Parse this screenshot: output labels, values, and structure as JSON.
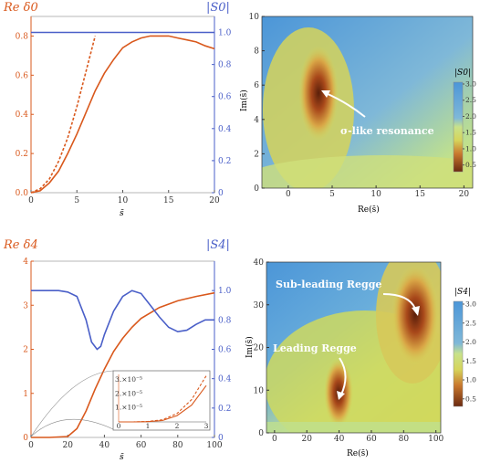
{
  "chart_data": [
    {
      "type": "line",
      "panel": "top-left",
      "left_axis_title": "Re δ0",
      "right_axis_title": "|S0|",
      "xlabel": "s̄",
      "xlim": [
        0,
        20
      ],
      "ylim": [
        0,
        0.9
      ],
      "y2lim": [
        0,
        1.1
      ],
      "x_ticks": [
        "0",
        "5",
        "10",
        "15",
        "20"
      ],
      "y_ticks": [
        "0.0",
        "0.2",
        "0.4",
        "0.6",
        "0.8"
      ],
      "y2_ticks": [
        "0",
        "0.2",
        "0.4",
        "0.6",
        "0.8",
        "1.0"
      ],
      "series": [
        {
          "role": "Re δ0",
          "color": "#d9581c",
          "axis": "left",
          "x": [
            0,
            1,
            2,
            3,
            4,
            5,
            6,
            7,
            8,
            9,
            10,
            11,
            12,
            13,
            14,
            15,
            16,
            17,
            18,
            19,
            20
          ],
          "y": [
            0,
            0.01,
            0.05,
            0.11,
            0.2,
            0.3,
            0.41,
            0.52,
            0.61,
            0.68,
            0.74,
            0.77,
            0.79,
            0.8,
            0.8,
            0.8,
            0.79,
            0.78,
            0.77,
            0.75,
            0.735
          ]
        },
        {
          "role": "approximation",
          "color": "#d9581c",
          "dashed": true,
          "axis": "left",
          "x": [
            0,
            1,
            2,
            3,
            4,
            5,
            6,
            7
          ],
          "y": [
            0,
            0.02,
            0.07,
            0.16,
            0.28,
            0.44,
            0.62,
            0.8
          ]
        },
        {
          "role": "|S0|",
          "color": "#4a5fc8",
          "axis": "right",
          "x": [
            0,
            20
          ],
          "y": [
            1.0,
            1.0
          ]
        }
      ]
    },
    {
      "type": "heatmap",
      "panel": "top-right",
      "xlabel": "Re(s̄)",
      "ylabel": "Im(s̄)",
      "xlim": [
        -3,
        21
      ],
      "ylim": [
        0,
        10
      ],
      "x_ticks": [
        "0",
        "5",
        "10",
        "15",
        "20"
      ],
      "y_ticks": [
        "0",
        "2",
        "4",
        "6",
        "8",
        "10"
      ],
      "colorbar_title": "|S0|",
      "colorbar_ticks": [
        "3.0",
        "2.5",
        "2.0",
        "1.5",
        "1.0",
        "0.5"
      ],
      "annotation": "σ-like resonance",
      "minimum_point": {
        "x": 5,
        "y": 5.7
      }
    },
    {
      "type": "line",
      "panel": "bottom-left",
      "left_axis_title": "Re δ4",
      "right_axis_title": "|S4|",
      "xlabel": "s̄",
      "xlim": [
        0,
        100
      ],
      "ylim": [
        0,
        4
      ],
      "y2lim": [
        0,
        1.2
      ],
      "x_ticks": [
        "0",
        "20",
        "40",
        "60",
        "80",
        "100"
      ],
      "y_ticks": [
        "0",
        "1",
        "2",
        "3",
        "4"
      ],
      "y2_ticks": [
        "0",
        "0.2",
        "0.4",
        "0.6",
        "0.8",
        "1.0"
      ],
      "series": [
        {
          "role": "Re δ4",
          "color": "#d9581c",
          "axis": "left",
          "x": [
            0,
            10,
            20,
            25,
            30,
            35,
            40,
            45,
            50,
            55,
            60,
            70,
            80,
            90,
            100
          ],
          "y": [
            0,
            0,
            0.02,
            0.2,
            0.6,
            1.1,
            1.55,
            1.95,
            2.25,
            2.5,
            2.7,
            2.95,
            3.1,
            3.2,
            3.28
          ]
        },
        {
          "role": "|S4|",
          "color": "#4a5fc8",
          "axis": "right",
          "x": [
            0,
            5,
            10,
            15,
            20,
            25,
            30,
            33,
            36,
            38,
            40,
            45,
            50,
            55,
            60,
            65,
            70,
            75,
            80,
            85,
            90,
            95,
            100
          ],
          "y": [
            1.0,
            1.0,
            1.0,
            1.0,
            0.99,
            0.96,
            0.8,
            0.65,
            0.6,
            0.62,
            0.7,
            0.86,
            0.96,
            1.0,
            0.98,
            0.9,
            0.82,
            0.75,
            0.72,
            0.73,
            0.77,
            0.8,
            0.8
          ]
        }
      ],
      "inset": {
        "x_ticks": [
          "0",
          "1",
          "2",
          "3"
        ],
        "y_ticks": [
          "1.×10⁻⁵",
          "2.×10⁻⁵",
          "3.×10⁻⁵"
        ],
        "series": [
          {
            "role": "solid",
            "x": [
              0,
              0.5,
              1,
              1.5,
              2,
              2.5,
              3
            ],
            "y": [
              0,
              0,
              0.02,
              0.1,
              0.45,
              1.2,
              2.6
            ]
          },
          {
            "role": "dashed",
            "x": [
              0,
              0.5,
              1,
              1.5,
              2,
              2.5,
              3
            ],
            "y": [
              0,
              0,
              0.03,
              0.15,
              0.6,
              1.6,
              3.3
            ]
          }
        ]
      }
    },
    {
      "type": "heatmap",
      "panel": "bottom-right",
      "xlabel": "Re(s̄)",
      "ylabel": "Im(s̄)",
      "xlim": [
        -5,
        103
      ],
      "ylim": [
        0,
        40
      ],
      "x_ticks": [
        "0",
        "20",
        "40",
        "60",
        "80",
        "100"
      ],
      "y_ticks": [
        "0",
        "10",
        "20",
        "30",
        "40"
      ],
      "colorbar_title": "|S4|",
      "colorbar_ticks": [
        "3.0",
        "2.5",
        "2.0",
        "1.5",
        "1.0",
        "0.5"
      ],
      "annotations": [
        "Sub-leading Regge",
        "Leading Regge"
      ],
      "minima": [
        {
          "x": 82,
          "y": 27
        },
        {
          "x": 38,
          "y": 8
        }
      ]
    }
  ],
  "colors": {
    "orange": "#d9581c",
    "blue": "#4a5fc8"
  }
}
